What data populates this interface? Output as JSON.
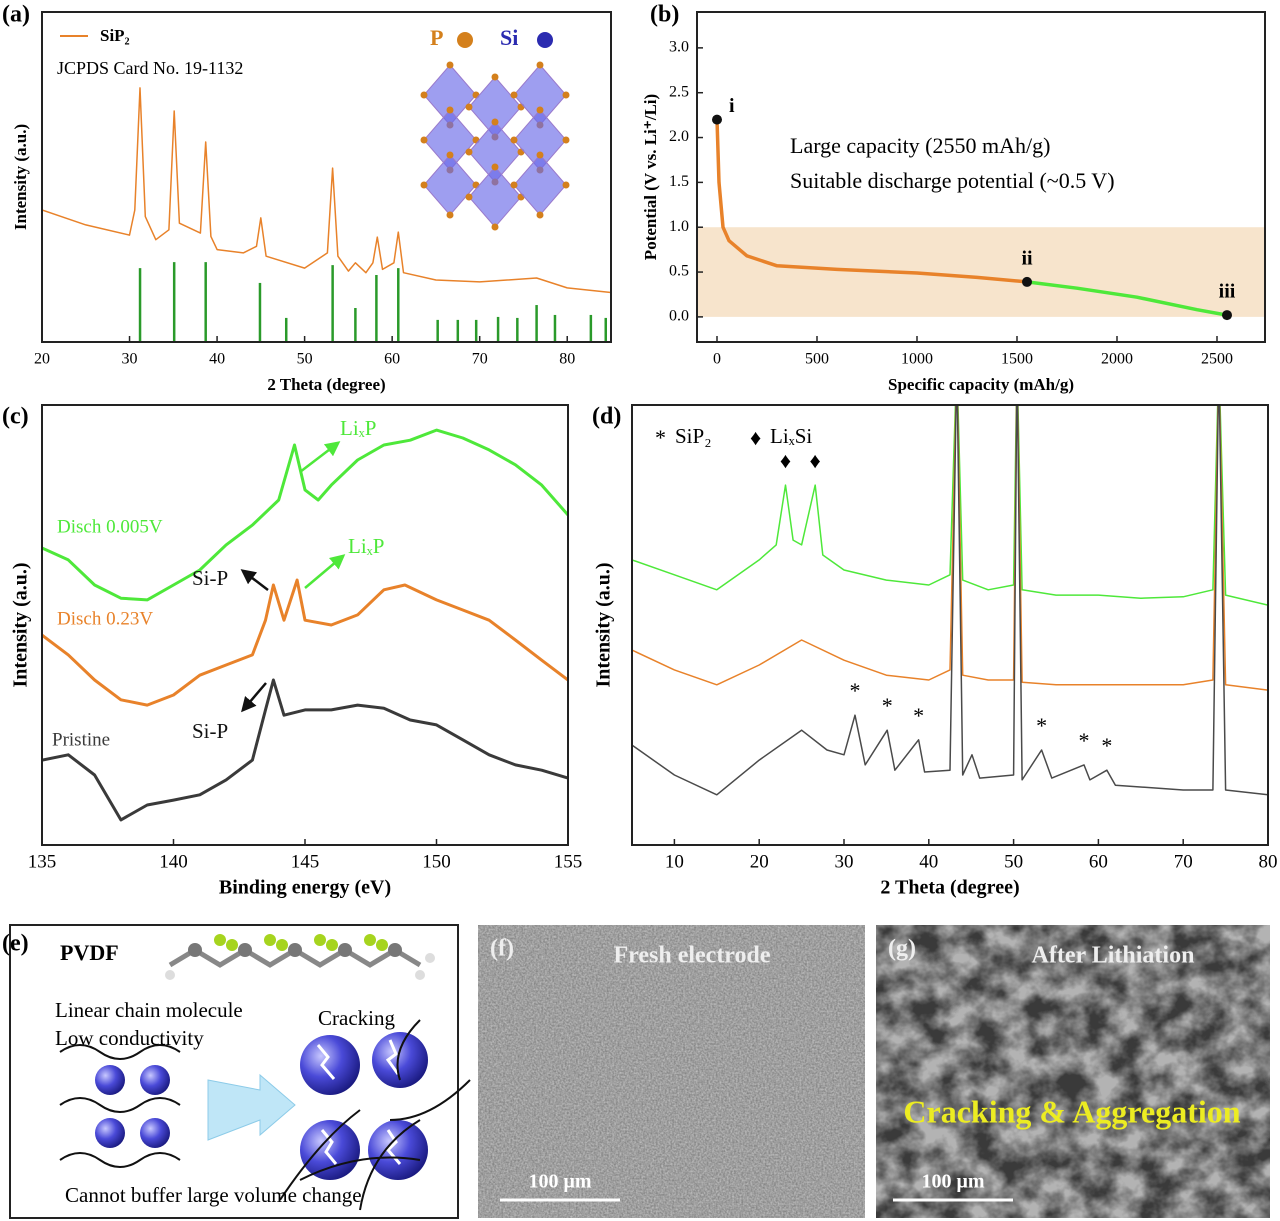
{
  "chart_data": [
    {
      "type": "line",
      "label": "(a)",
      "xlabel": "2 Theta (degree)",
      "ylabel": "Intensity (a.u.)",
      "xlim": [
        20,
        85
      ],
      "xticks": [
        20,
        30,
        40,
        50,
        60,
        70,
        80
      ],
      "ylim": [
        0,
        100
      ],
      "series": [
        {
          "name": "SiP₂",
          "color": "#e8822a",
          "x": [
            20,
            25,
            30,
            30.6,
            31.2,
            31.8,
            33,
            34.5,
            35.1,
            35.7,
            38.1,
            38.7,
            39.3,
            40,
            43,
            44.5,
            45,
            45.6,
            50,
            52.6,
            53.2,
            53.8,
            55,
            55.8,
            57,
            57.8,
            58.3,
            58.9,
            60.2,
            60.7,
            61.3,
            65,
            70,
            76.5,
            80,
            85
          ],
          "values": [
            40,
            35.5,
            32.4,
            40,
            77,
            38,
            31,
            34,
            70,
            36,
            33,
            60.6,
            32,
            28,
            27,
            29,
            37.6,
            26,
            22.4,
            27,
            52.7,
            26,
            21.5,
            24,
            21,
            24,
            31.8,
            22,
            24,
            33.3,
            21,
            18.8,
            18.2,
            19.4,
            16.4,
            15
          ]
        }
      ],
      "reference": {
        "name": "JCPDS Card No. 19-1132",
        "color": "#2a9a2a",
        "x": [
          31.2,
          35.1,
          38.7,
          44.9,
          47.9,
          53.2,
          55.8,
          58.2,
          60.7,
          65.2,
          67.5,
          69.6,
          72.1,
          74.3,
          76.5,
          78.6,
          82.7,
          84.4
        ],
        "values": [
          22.4,
          24.2,
          24.2,
          17.9,
          7.3,
          23.3,
          10.3,
          20.3,
          22.4,
          6.7,
          6.7,
          6.7,
          7.6,
          7.3,
          11.2,
          8.2,
          8.2,
          7.3
        ]
      },
      "structure_legend": [
        {
          "label": "P",
          "color": "#d4801c"
        },
        {
          "label": "Si",
          "color": "#2b2bb0"
        }
      ]
    },
    {
      "type": "line",
      "label": "(b)",
      "xlabel": "Specific capacity (mAh/g)",
      "ylabel": "Potential (V vs. Li⁺/Li)",
      "xlim": [
        -100,
        2740
      ],
      "xticks": [
        0,
        500,
        1000,
        1500,
        2000,
        2500
      ],
      "ylim": [
        -0.28,
        3.4
      ],
      "yticks": [
        {
          "value": 0,
          "label": "0.0"
        },
        0.5,
        {
          "value": 1,
          "label": "1.0"
        },
        1.5,
        {
          "value": 2,
          "label": "2.0"
        },
        2.5,
        {
          "value": 3,
          "label": "3.0"
        }
      ],
      "highlight_range": [
        0,
        1.0
      ],
      "highlight_color": "#f7e4cc",
      "series": [
        {
          "color": "#e8822a",
          "x": [
            0,
            10,
            30,
            60,
            150,
            300,
            600,
            1000,
            1300,
            1550
          ],
          "values": [
            2.2,
            1.5,
            1.0,
            0.85,
            0.68,
            0.57,
            0.53,
            0.49,
            0.44,
            0.39
          ]
        },
        {
          "color": "#4ee83a",
          "x": [
            1550,
            1800,
            2100,
            2400,
            2550
          ],
          "values": [
            0.39,
            0.32,
            0.22,
            0.08,
            0.02
          ]
        }
      ],
      "points": {
        "labels": [
          "i",
          "ii",
          "iii"
        ],
        "x": [
          0,
          1550,
          2550
        ],
        "values": [
          2.2,
          0.39,
          0.02
        ]
      },
      "annotations": [
        "Large capacity (2550 mAh/g)",
        "Suitable discharge potential (~0.5 V)"
      ]
    },
    {
      "type": "line",
      "label": "(c)",
      "xlabel": "Binding energy (eV)",
      "ylabel": "Intensity (a.u.)",
      "xlim": [
        135,
        155
      ],
      "xticks": [
        135,
        140,
        145,
        150,
        155
      ],
      "ylim": [
        0,
        100
      ],
      "series": [
        {
          "name": "Disch 0.005V",
          "color": "#4ee83a",
          "x": [
            135,
            136,
            137,
            138,
            139,
            140,
            141,
            142,
            143,
            144,
            144.6,
            145,
            145.5,
            146,
            147,
            148,
            149,
            150,
            151,
            152,
            153,
            154,
            155
          ],
          "values": [
            67.5,
            64.8,
            59.1,
            56.1,
            55.7,
            59.1,
            62.5,
            68.2,
            72.7,
            78.4,
            90.9,
            80.7,
            78.4,
            81.8,
            87.5,
            90.9,
            92.0,
            94.3,
            92.5,
            89.8,
            86.4,
            81.8,
            75.0
          ]
        },
        {
          "name": "Disch 0.23V",
          "color": "#e8822a",
          "x": [
            135,
            136,
            137,
            138,
            139,
            140,
            141,
            142,
            143,
            143.5,
            143.8,
            144.2,
            144.7,
            145,
            146,
            147,
            148,
            148.8,
            150,
            151,
            152,
            153,
            154,
            155
          ],
          "values": [
            47.7,
            43.2,
            37.5,
            33.0,
            31.8,
            34.1,
            38.6,
            40.9,
            43.2,
            51.1,
            59.1,
            51.1,
            60.2,
            51.1,
            50.0,
            52.3,
            58.0,
            59.1,
            55.7,
            53.4,
            51.1,
            46.6,
            42.0,
            37.5
          ]
        },
        {
          "name": "Pristine",
          "color": "#3a3a3a",
          "x": [
            135,
            136,
            137,
            138,
            139,
            140,
            141,
            142,
            143,
            143.5,
            143.8,
            144.2,
            145,
            146,
            147,
            148,
            149,
            150,
            151,
            152,
            153,
            154,
            155
          ],
          "values": [
            19.3,
            20.5,
            15.9,
            5.7,
            9.1,
            10.2,
            11.4,
            14.8,
            19.3,
            30.7,
            37.5,
            29.5,
            30.7,
            30.7,
            31.8,
            31.1,
            28.4,
            27.3,
            23.9,
            20.5,
            18.2,
            17.0,
            15.2
          ]
        }
      ],
      "annotations": [
        "LiₓP",
        "LiₓP",
        "Si-P",
        "Si-P"
      ]
    },
    {
      "type": "line",
      "label": "(d)",
      "xlabel": "2 Theta (degree)",
      "ylabel": "Intensity (a.u.)",
      "xlim": [
        5,
        80
      ],
      "xticks": [
        10,
        20,
        30,
        40,
        50,
        60,
        70,
        80
      ],
      "ylim": [
        0,
        100
      ],
      "series": [
        {
          "color": "#4ee83a",
          "x": [
            5,
            10,
            15,
            20,
            22,
            23.1,
            24,
            25,
            26.6,
            27.5,
            30,
            35,
            40,
            42.5,
            43.3,
            44,
            47,
            50,
            50.4,
            51,
            55,
            60,
            65,
            70,
            73.5,
            74.2,
            75,
            80
          ],
          "values": [
            64.8,
            61.4,
            58.0,
            64.8,
            68.2,
            81.8,
            69.3,
            68.2,
            81.8,
            65.9,
            62.5,
            60.2,
            59.1,
            61.4,
            110,
            60.2,
            58.0,
            59.1,
            110,
            58.0,
            56.8,
            56.8,
            56.1,
            56.4,
            58.0,
            110,
            56.8,
            54.5
          ]
        },
        {
          "color": "#e8822a",
          "x": [
            5,
            10,
            15,
            20,
            25,
            30,
            35,
            40,
            42.5,
            43.3,
            44,
            47,
            50,
            50.4,
            51,
            55,
            60,
            65,
            70,
            73.5,
            74.2,
            75,
            80
          ],
          "values": [
            44.3,
            39.8,
            36.4,
            40.9,
            46.6,
            42.0,
            38.6,
            37.5,
            39.8,
            110,
            38.6,
            37.5,
            37.5,
            110,
            37.0,
            36.4,
            36.4,
            36.4,
            36.4,
            37.5,
            110,
            36.4,
            35.2
          ]
        },
        {
          "color": "#4a4a4a",
          "x": [
            5,
            10,
            15,
            20,
            25,
            28,
            30,
            31.3,
            32.5,
            35.1,
            36,
            38.8,
            39.5,
            42.5,
            43.3,
            44,
            45.1,
            46,
            50,
            50.4,
            51,
            53.3,
            54.5,
            58.3,
            59,
            61,
            62,
            70,
            73.5,
            74.2,
            75,
            80
          ],
          "values": [
            22.7,
            15.9,
            11.4,
            19.3,
            26.1,
            21.6,
            20.5,
            29.5,
            18.2,
            26.1,
            17.0,
            23.9,
            16.6,
            17.0,
            110,
            15.9,
            20.5,
            15.2,
            15.9,
            110,
            14.8,
            21.6,
            15.2,
            18.2,
            14.8,
            17.0,
            13.6,
            12.5,
            12.5,
            110,
            12.5,
            11.4
          ]
        }
      ],
      "legend": [
        {
          "symbol": "*",
          "name": "SiP₂",
          "peaks": [
            31.3,
            35.1,
            38.8,
            53.3,
            58.3,
            61.0
          ]
        },
        {
          "symbol": "♦",
          "name": "LiₓSi",
          "peaks": [
            23.1,
            26.6
          ]
        }
      ]
    }
  ],
  "panels": {
    "e": {
      "label": "(e)",
      "title": "PVDF",
      "lines": [
        "Linear chain molecule",
        "Low conductivity"
      ],
      "cracking": "Cracking",
      "caption": "Cannot buffer large volume change"
    },
    "f": {
      "label": "(f)",
      "title": "Fresh electrode",
      "scale_bar": "100 μm"
    },
    "g": {
      "label": "(g)",
      "title": "After Lithiation",
      "note": "Cracking & Aggregation",
      "scale_bar": "100 μm"
    }
  }
}
